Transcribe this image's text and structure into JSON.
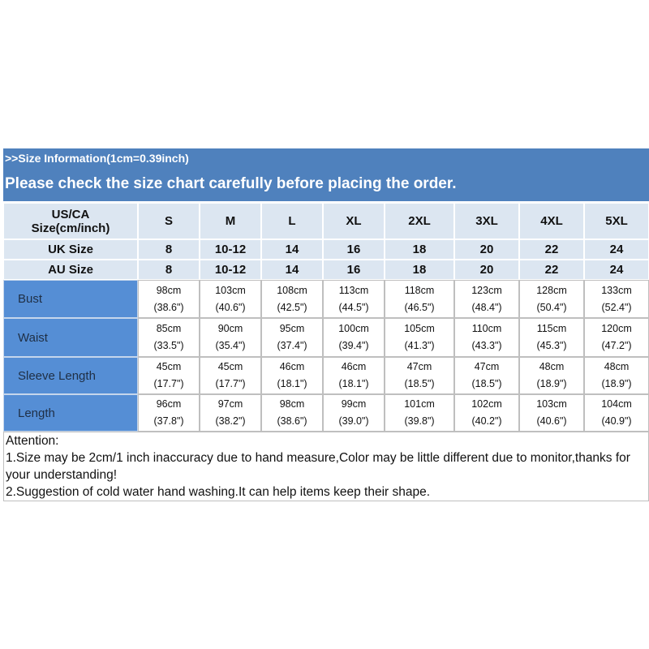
{
  "header": {
    "info": ">>Size Information(1cm=0.39inch)",
    "notice": "Please check the size chart carefully before placing the order."
  },
  "table": {
    "size_label": [
      "US/CA",
      "Size(cm/inch)"
    ],
    "columns": [
      "S",
      "M",
      "L",
      "XL",
      "2XL",
      "3XL",
      "4XL",
      "5XL"
    ],
    "uk": {
      "label": "UK Size",
      "values": [
        "8",
        "10-12",
        "14",
        "16",
        "18",
        "20",
        "22",
        "24"
      ]
    },
    "au": {
      "label": "AU Size",
      "values": [
        "8",
        "10-12",
        "14",
        "16",
        "18",
        "20",
        "22",
        "24"
      ]
    },
    "measurements": [
      {
        "label": "Bust",
        "cm": [
          "98cm",
          "103cm",
          "108cm",
          "113cm",
          "118cm",
          "123cm",
          "128cm",
          "133cm"
        ],
        "inch": [
          "(38.6\")",
          "(40.6\")",
          "(42.5\")",
          "(44.5\")",
          "(46.5\")",
          "(48.4\")",
          "(50.4\")",
          "(52.4\")"
        ]
      },
      {
        "label": "Waist",
        "cm": [
          "85cm",
          "90cm",
          "95cm",
          "100cm",
          "105cm",
          "110cm",
          "115cm",
          "120cm"
        ],
        "inch": [
          "(33.5\")",
          "(35.4\")",
          "(37.4\")",
          "(39.4\")",
          "(41.3\")",
          "(43.3\")",
          "(45.3\")",
          "(47.2\")"
        ]
      },
      {
        "label": "Sleeve Length",
        "cm": [
          "45cm",
          "45cm",
          "46cm",
          "46cm",
          "47cm",
          "47cm",
          "48cm",
          "48cm"
        ],
        "inch": [
          "(17.7\")",
          "(17.7\")",
          "(18.1\")",
          "(18.1\")",
          "(18.5\")",
          "(18.5\")",
          "(18.9\")",
          "(18.9\")"
        ]
      },
      {
        "label": "Length",
        "cm": [
          "96cm",
          "97cm",
          "98cm",
          "99cm",
          "101cm",
          "102cm",
          "103cm",
          "104cm"
        ],
        "inch": [
          "(37.8\")",
          "(38.2\")",
          "(38.6\")",
          "(39.0\")",
          "(39.8\")",
          "(40.2\")",
          "(40.6\")",
          "(40.9\")"
        ]
      }
    ]
  },
  "attention": {
    "title": "Attention:",
    "notes": [
      "1.Size may be 2cm/1 inch inaccuracy due to hand measure,Color may be little different due to monitor,thanks for your understanding!",
      "2.Suggestion of cold water hand washing.It can help items keep their shape."
    ]
  }
}
